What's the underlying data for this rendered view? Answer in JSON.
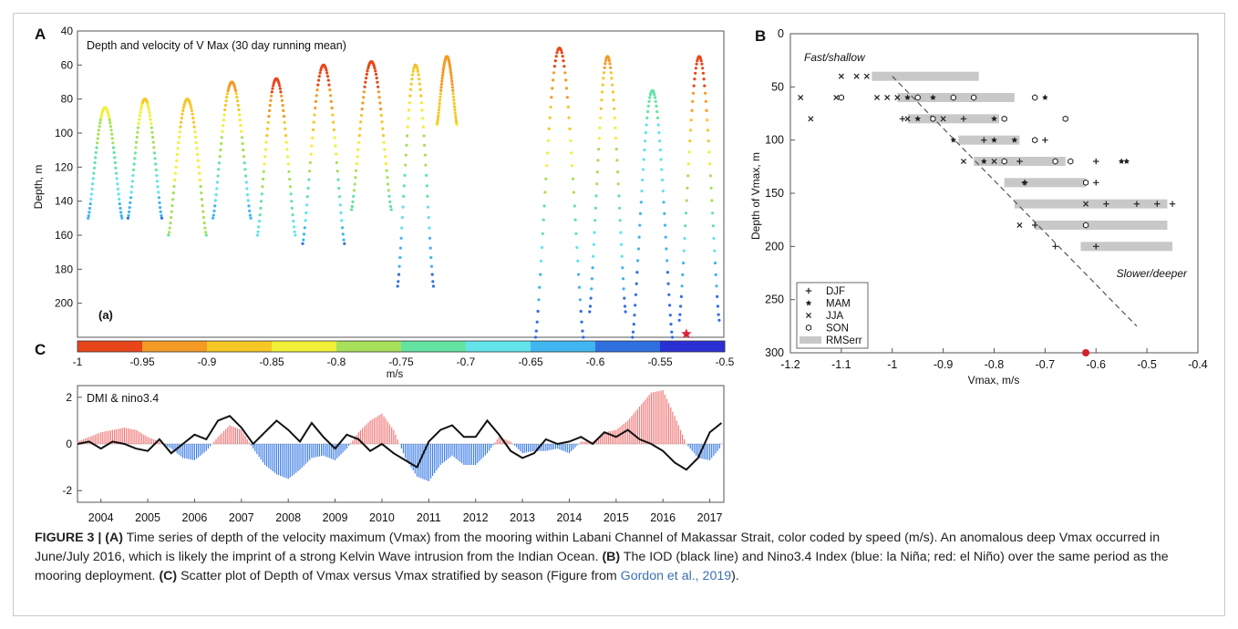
{
  "panel_labels": {
    "a": "A",
    "b": "B",
    "c": "C"
  },
  "colorbar": {
    "unit": "m/s",
    "tick_labels": [
      "-1",
      "-0.95",
      "-0.9",
      "-0.85",
      "-0.8",
      "-0.75",
      "-0.7",
      "-0.65",
      "-0.6",
      "-0.55",
      "-0.5"
    ],
    "colors": [
      "#e8461a",
      "#f59a25",
      "#f5c824",
      "#f2ef38",
      "#a8e05a",
      "#63e4a3",
      "#62e4ea",
      "#3fb6f0",
      "#2f6fe0",
      "#2a2fd4",
      "#231aa6"
    ]
  },
  "chart_data": [
    {
      "id": "panel-A",
      "type": "scatter",
      "title": "Depth and velocity of V Max (30 day running mean)",
      "sublabel": "(a)",
      "ylabel": "Depth, m",
      "xlim": [
        2003.5,
        2017.3
      ],
      "ylim": [
        220,
        40
      ],
      "yticks": [
        40,
        60,
        80,
        100,
        120,
        140,
        160,
        180,
        200
      ],
      "color_by": "velocity (m/s)",
      "cycles": [
        {
          "start": 2003.6,
          "end": 2004.45,
          "shallow": 85,
          "deep": 150,
          "v_shallow": -0.82,
          "v_deep": -0.62
        },
        {
          "start": 2004.45,
          "end": 2005.3,
          "shallow": 80,
          "deep": 150,
          "v_shallow": -0.86,
          "v_deep": -0.6
        },
        {
          "start": 2005.3,
          "end": 2006.25,
          "shallow": 80,
          "deep": 160,
          "v_shallow": -0.88,
          "v_deep": -0.75
        },
        {
          "start": 2006.25,
          "end": 2007.2,
          "shallow": 70,
          "deep": 150,
          "v_shallow": -0.92,
          "v_deep": -0.62
        },
        {
          "start": 2007.2,
          "end": 2008.15,
          "shallow": 68,
          "deep": 160,
          "v_shallow": -0.98,
          "v_deep": -0.66
        },
        {
          "start": 2008.15,
          "end": 2009.2,
          "shallow": 60,
          "deep": 165,
          "v_shallow": -1.0,
          "v_deep": -0.6
        },
        {
          "start": 2009.2,
          "end": 2010.2,
          "shallow": 58,
          "deep": 145,
          "v_shallow": -1.0,
          "v_deep": -0.72
        },
        {
          "start": 2010.2,
          "end": 2011.1,
          "shallow": 60,
          "deep": 190,
          "v_shallow": -0.9,
          "v_deep": -0.58
        },
        {
          "start": 2011.1,
          "end": 2011.6,
          "shallow": 55,
          "deep": 95,
          "v_shallow": -0.95,
          "v_deep": -0.85
        },
        {
          "start": 2013.1,
          "end": 2014.3,
          "shallow": 50,
          "deep": 220,
          "v_shallow": -0.98,
          "v_deep": -0.55
        },
        {
          "start": 2014.3,
          "end": 2015.2,
          "shallow": 55,
          "deep": 205,
          "v_shallow": -0.92,
          "v_deep": -0.58
        },
        {
          "start": 2015.2,
          "end": 2016.2,
          "shallow": 75,
          "deep": 220,
          "v_shallow": -0.72,
          "v_deep": -0.55
        },
        {
          "start": 2016.2,
          "end": 2017.2,
          "shallow": 55,
          "deep": 210,
          "v_shallow": -1.0,
          "v_deep": -0.55
        }
      ],
      "marker_star": {
        "x": 2016.5,
        "y": 218
      }
    },
    {
      "id": "panel-B",
      "type": "scatter",
      "ylabel": "Depth of Vmax, m",
      "xlabel": "Vmax, m/s",
      "xlim": [
        -1.2,
        -0.4
      ],
      "ylim": [
        300,
        0
      ],
      "xticks": [
        -1.2,
        -1.1,
        -1.0,
        -0.9,
        -0.8,
        -0.7,
        -0.6,
        -0.5,
        -0.4
      ],
      "xtick_labels": [
        "-1.2",
        "-1.1",
        "-1",
        "-0.9",
        "-0.8",
        "-0.7",
        "-0.6",
        "-0.5",
        "-0.4"
      ],
      "yticks": [
        0,
        50,
        100,
        150,
        200,
        250,
        300
      ],
      "annotations": [
        "Fast/shallow",
        "Slower/deeper"
      ],
      "trend_line": [
        [
          -1.0,
          40
        ],
        [
          -0.52,
          275
        ]
      ],
      "rms_bars": [
        {
          "depth": 40,
          "xmin": -1.04,
          "xmax": -0.83
        },
        {
          "depth": 60,
          "xmin": -0.99,
          "xmax": -0.76
        },
        {
          "depth": 80,
          "xmin": -0.97,
          "xmax": -0.79
        },
        {
          "depth": 100,
          "xmin": -0.87,
          "xmax": -0.75
        },
        {
          "depth": 120,
          "xmin": -0.84,
          "xmax": -0.66
        },
        {
          "depth": 140,
          "xmin": -0.78,
          "xmax": -0.62
        },
        {
          "depth": 160,
          "xmin": -0.76,
          "xmax": -0.46
        },
        {
          "depth": 180,
          "xmin": -0.72,
          "xmax": -0.46
        },
        {
          "depth": 200,
          "xmin": -0.63,
          "xmax": -0.45
        }
      ],
      "series": [
        {
          "name": "DJF",
          "marker": "plus",
          "points": [
            [
              -0.98,
              80
            ],
            [
              -0.86,
              80
            ],
            [
              -0.82,
              100
            ],
            [
              -0.7,
              100
            ],
            [
              -0.75,
              120
            ],
            [
              -0.6,
              120
            ],
            [
              -0.74,
              140
            ],
            [
              -0.6,
              140
            ],
            [
              -0.58,
              160
            ],
            [
              -0.52,
              160
            ],
            [
              -0.48,
              160
            ],
            [
              -0.45,
              160
            ],
            [
              -0.72,
              180
            ],
            [
              -0.68,
              200
            ],
            [
              -0.6,
              200
            ]
          ]
        },
        {
          "name": "MAM",
          "marker": "star",
          "points": [
            [
              -0.97,
              60
            ],
            [
              -0.92,
              60
            ],
            [
              -0.88,
              60
            ],
            [
              -0.7,
              60
            ],
            [
              -0.95,
              80
            ],
            [
              -0.8,
              80
            ],
            [
              -0.88,
              100
            ],
            [
              -0.8,
              100
            ],
            [
              -0.76,
              100
            ],
            [
              -0.82,
              120
            ],
            [
              -0.55,
              120
            ],
            [
              -0.54,
              120
            ],
            [
              -0.74,
              140
            ]
          ]
        },
        {
          "name": "JJA",
          "marker": "x",
          "points": [
            [
              -1.1,
              40
            ],
            [
              -1.07,
              40
            ],
            [
              -1.05,
              40
            ],
            [
              -1.18,
              60
            ],
            [
              -1.11,
              60
            ],
            [
              -1.03,
              60
            ],
            [
              -1.01,
              60
            ],
            [
              -0.99,
              60
            ],
            [
              -1.16,
              80
            ],
            [
              -0.97,
              80
            ],
            [
              -0.9,
              80
            ],
            [
              -0.86,
              120
            ],
            [
              -0.8,
              120
            ],
            [
              -0.62,
              160
            ],
            [
              -0.75,
              180
            ]
          ]
        },
        {
          "name": "SON",
          "marker": "hex",
          "points": [
            [
              -1.1,
              60
            ],
            [
              -0.95,
              60
            ],
            [
              -0.88,
              60
            ],
            [
              -0.84,
              60
            ],
            [
              -0.72,
              60
            ],
            [
              -0.92,
              80
            ],
            [
              -0.78,
              80
            ],
            [
              -0.66,
              80
            ],
            [
              -0.72,
              100
            ],
            [
              -0.78,
              120
            ],
            [
              -0.68,
              120
            ],
            [
              -0.65,
              120
            ],
            [
              -0.62,
              140
            ],
            [
              -0.62,
              180
            ]
          ]
        }
      ],
      "legend": [
        "DJF",
        "MAM",
        "JJA",
        "SON",
        "RMSerr"
      ],
      "legend_position": "bottom-left",
      "marker_star": {
        "x": -0.62,
        "y": 300
      }
    },
    {
      "id": "panel-C",
      "type": "bar",
      "title": "DMI & nino3.4",
      "xlim": [
        2003.5,
        2017.3
      ],
      "ylim": [
        -2.5,
        2.5
      ],
      "yticks": [
        -2,
        0,
        2
      ],
      "xtick_labels": [
        "2004",
        "2005",
        "2006",
        "2007",
        "2008",
        "2009",
        "2010",
        "2011",
        "2012",
        "2013",
        "2014",
        "2015",
        "2016",
        "2017"
      ],
      "nino34_bars": [
        [
          2003.5,
          0.1
        ],
        [
          2003.75,
          0.3
        ],
        [
          2004.0,
          0.5
        ],
        [
          2004.25,
          0.6
        ],
        [
          2004.5,
          0.7
        ],
        [
          2004.75,
          0.6
        ],
        [
          2005.0,
          0.3
        ],
        [
          2005.25,
          0.1
        ],
        [
          2005.5,
          -0.2
        ],
        [
          2005.75,
          -0.6
        ],
        [
          2006.0,
          -0.7
        ],
        [
          2006.25,
          -0.3
        ],
        [
          2006.5,
          0.3
        ],
        [
          2006.75,
          0.8
        ],
        [
          2007.0,
          0.6
        ],
        [
          2007.25,
          -0.2
        ],
        [
          2007.5,
          -0.9
        ],
        [
          2007.75,
          -1.3
        ],
        [
          2008.0,
          -1.5
        ],
        [
          2008.25,
          -1.1
        ],
        [
          2008.5,
          -0.6
        ],
        [
          2008.75,
          -0.5
        ],
        [
          2009.0,
          -0.7
        ],
        [
          2009.25,
          -0.2
        ],
        [
          2009.5,
          0.5
        ],
        [
          2009.75,
          1.0
        ],
        [
          2010.0,
          1.3
        ],
        [
          2010.25,
          0.6
        ],
        [
          2010.5,
          -0.6
        ],
        [
          2010.75,
          -1.4
        ],
        [
          2011.0,
          -1.6
        ],
        [
          2011.25,
          -0.9
        ],
        [
          2011.5,
          -0.5
        ],
        [
          2011.75,
          -0.9
        ],
        [
          2012.0,
          -0.9
        ],
        [
          2012.25,
          -0.4
        ],
        [
          2012.5,
          0.3
        ],
        [
          2012.75,
          0.1
        ],
        [
          2013.0,
          -0.4
        ],
        [
          2013.25,
          -0.3
        ],
        [
          2013.5,
          -0.3
        ],
        [
          2013.75,
          -0.2
        ],
        [
          2014.0,
          -0.4
        ],
        [
          2014.25,
          0.1
        ],
        [
          2014.5,
          0.1
        ],
        [
          2014.75,
          0.5
        ],
        [
          2015.0,
          0.6
        ],
        [
          2015.25,
          1.0
        ],
        [
          2015.5,
          1.6
        ],
        [
          2015.75,
          2.2
        ],
        [
          2016.0,
          2.3
        ],
        [
          2016.25,
          1.2
        ],
        [
          2016.5,
          0.0
        ],
        [
          2016.75,
          -0.6
        ],
        [
          2017.0,
          -0.7
        ],
        [
          2017.25,
          -0.1
        ]
      ],
      "dmi_line": [
        [
          2003.5,
          0.0
        ],
        [
          2003.75,
          0.1
        ],
        [
          2004.0,
          -0.2
        ],
        [
          2004.25,
          0.1
        ],
        [
          2004.5,
          0.0
        ],
        [
          2004.75,
          -0.2
        ],
        [
          2005.0,
          -0.3
        ],
        [
          2005.25,
          0.2
        ],
        [
          2005.5,
          -0.4
        ],
        [
          2005.75,
          0.0
        ],
        [
          2006.0,
          0.4
        ],
        [
          2006.25,
          0.2
        ],
        [
          2006.5,
          1.0
        ],
        [
          2006.75,
          1.2
        ],
        [
          2007.0,
          0.7
        ],
        [
          2007.25,
          0.0
        ],
        [
          2007.5,
          0.5
        ],
        [
          2007.75,
          1.0
        ],
        [
          2008.0,
          0.6
        ],
        [
          2008.25,
          0.1
        ],
        [
          2008.5,
          0.9
        ],
        [
          2008.75,
          0.3
        ],
        [
          2009.0,
          -0.2
        ],
        [
          2009.25,
          0.4
        ],
        [
          2009.5,
          0.2
        ],
        [
          2009.75,
          -0.3
        ],
        [
          2010.0,
          0.0
        ],
        [
          2010.25,
          -0.4
        ],
        [
          2010.5,
          -0.7
        ],
        [
          2010.75,
          -1.0
        ],
        [
          2011.0,
          0.1
        ],
        [
          2011.25,
          0.6
        ],
        [
          2011.5,
          0.8
        ],
        [
          2011.75,
          0.3
        ],
        [
          2012.0,
          0.3
        ],
        [
          2012.25,
          1.0
        ],
        [
          2012.5,
          0.4
        ],
        [
          2012.75,
          -0.3
        ],
        [
          2013.0,
          -0.6
        ],
        [
          2013.25,
          -0.4
        ],
        [
          2013.5,
          0.2
        ],
        [
          2013.75,
          0.0
        ],
        [
          2014.0,
          0.1
        ],
        [
          2014.25,
          0.3
        ],
        [
          2014.5,
          0.0
        ],
        [
          2014.75,
          0.5
        ],
        [
          2015.0,
          0.3
        ],
        [
          2015.25,
          0.6
        ],
        [
          2015.5,
          0.2
        ],
        [
          2015.75,
          0.0
        ],
        [
          2016.0,
          -0.3
        ],
        [
          2016.25,
          -0.8
        ],
        [
          2016.5,
          -1.1
        ],
        [
          2016.75,
          -0.6
        ],
        [
          2017.0,
          0.5
        ],
        [
          2017.25,
          0.9
        ]
      ]
    }
  ],
  "caption": {
    "figure_label": "FIGURE 3 | ",
    "part1_label": "(A)",
    "part1_text": " Time series of depth of the velocity maximum (Vmax) from the mooring within Labani Channel of Makassar Strait, color coded by speed (m/s). An anomalous deep Vmax occurred in June/July 2016, which is likely the imprint of a strong Kelvin Wave intrusion from the Indian Ocean. ",
    "part2_label": "(B)",
    "part2_text": " The IOD (black line) and Nino3.4 Index (blue: la Niña; red: el Niño) over the same period as the mooring deployment. ",
    "part3_label": "(C)",
    "part3_text": " Scatter plot of Depth of Vmax versus Vmax stratified by season (Figure from ",
    "reference": "Gordon et al., 2019",
    "tail": ")."
  }
}
